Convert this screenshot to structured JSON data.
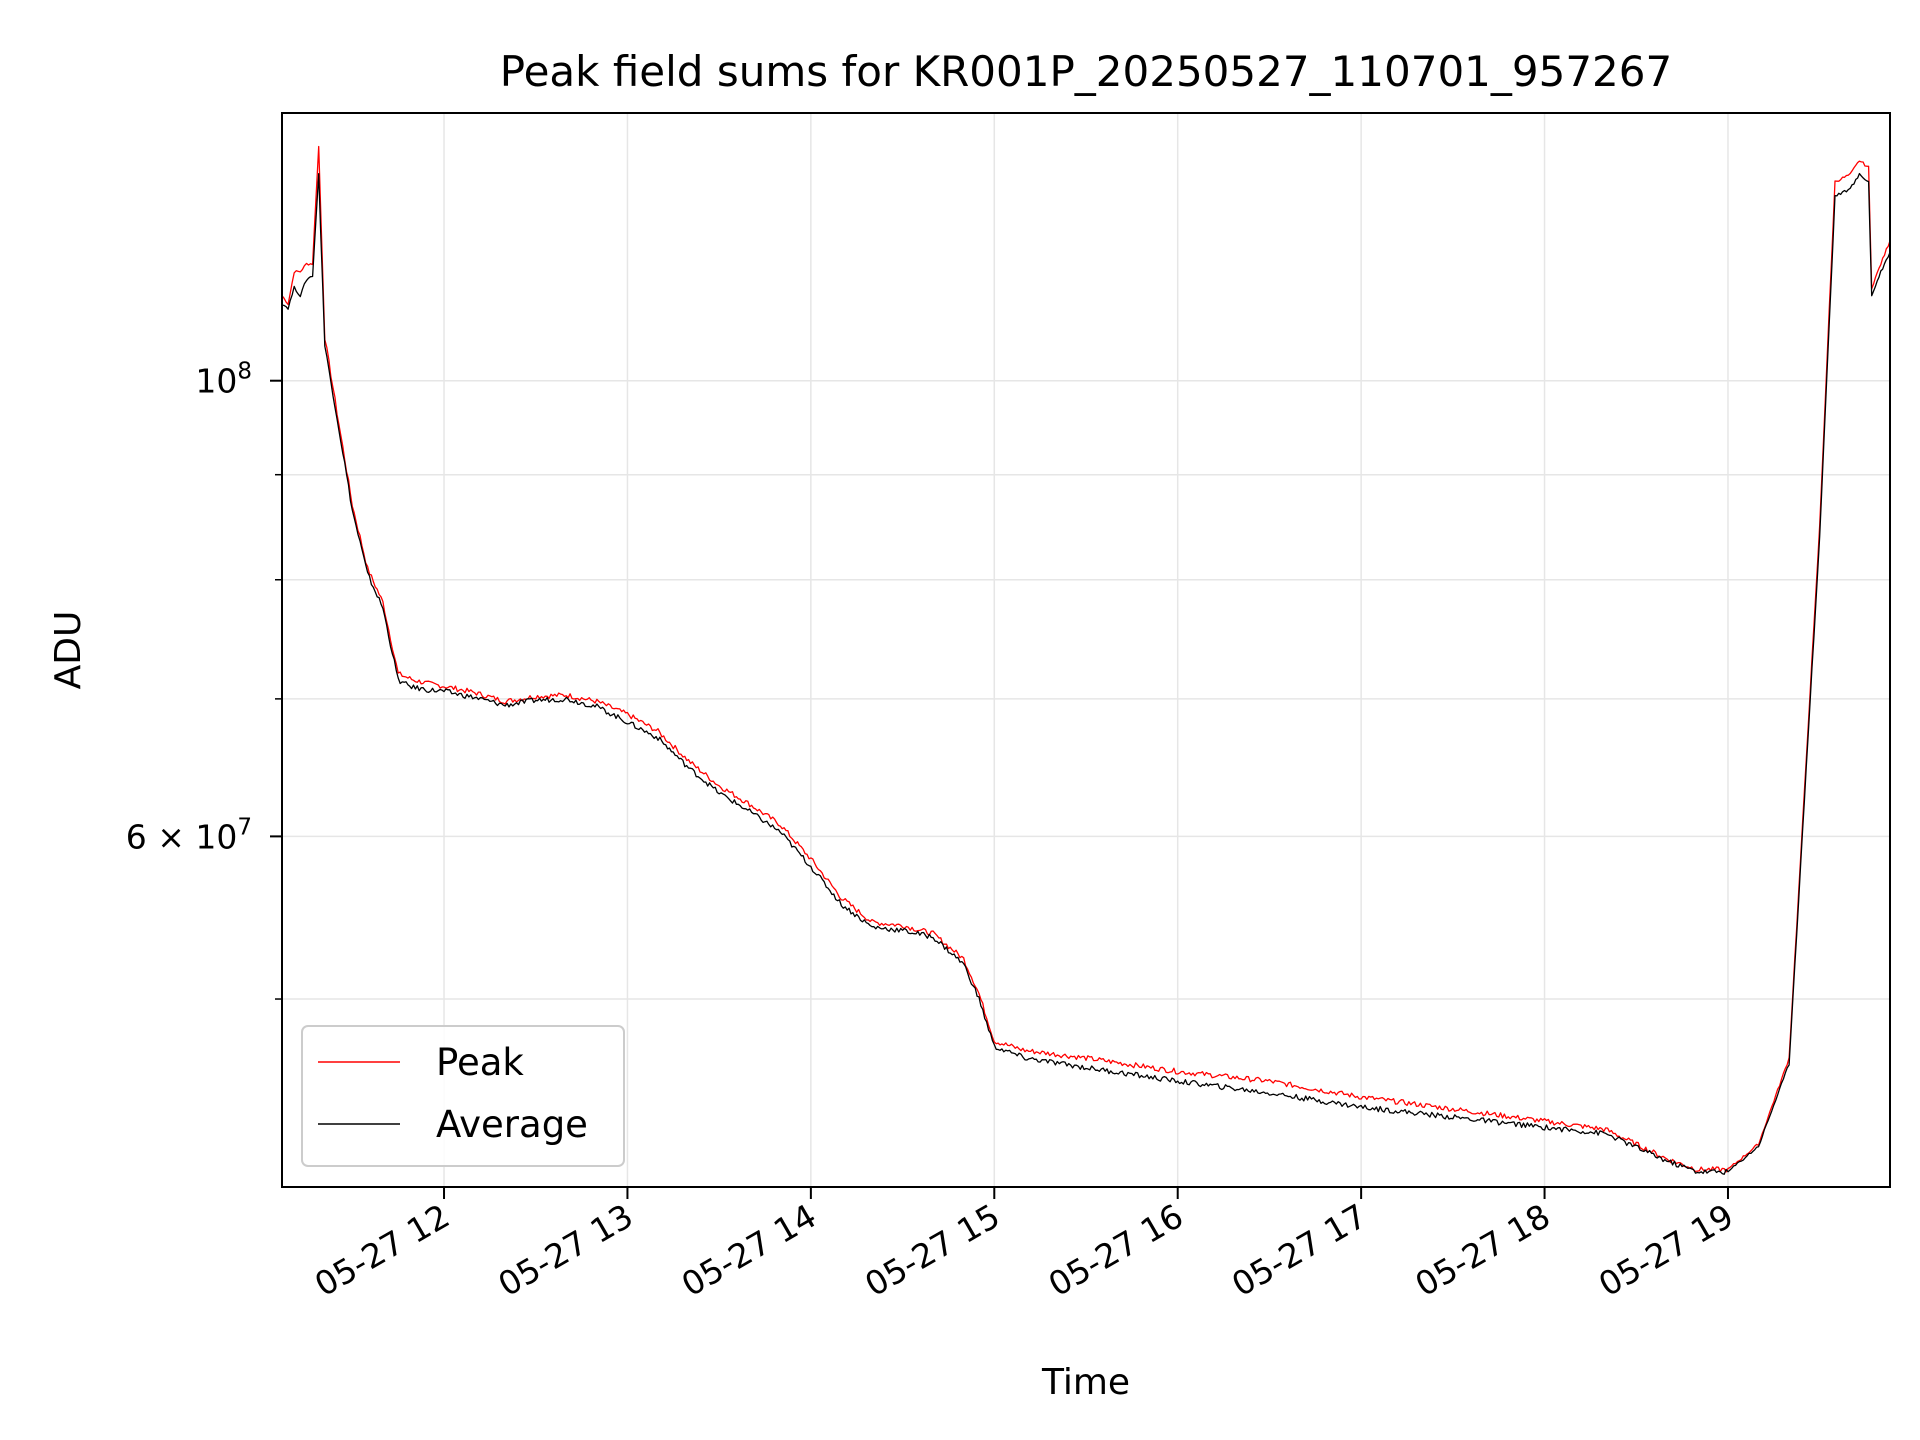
{
  "chart_data": {
    "type": "line",
    "title": "Peak field sums for KR001P_20250527_110701_957267",
    "xlabel": "Time",
    "ylabel": "ADU",
    "x_type": "time",
    "x_range": [
      "11:07",
      "19:53"
    ],
    "yscale": "log",
    "ylim": [
      40500000,
      135000000
    ],
    "grid": true,
    "legend_position": "lower-left",
    "x_ticks": [
      {
        "hour": 12,
        "label": "05-27 12"
      },
      {
        "hour": 13,
        "label": "05-27 13"
      },
      {
        "hour": 14,
        "label": "05-27 14"
      },
      {
        "hour": 15,
        "label": "05-27 15"
      },
      {
        "hour": 16,
        "label": "05-27 16"
      },
      {
        "hour": 17,
        "label": "05-27 17"
      },
      {
        "hour": 18,
        "label": "05-27 18"
      },
      {
        "hour": 19,
        "label": "05-27 19"
      }
    ],
    "y_ticks_major": [
      {
        "value": 100000000,
        "mantissa": "10",
        "exp": "8"
      },
      {
        "value": 60000000,
        "mantissa": "6 × 10",
        "exp": "7"
      }
    ],
    "y_ticks_minor": [
      50000000,
      70000000,
      80000000,
      90000000
    ],
    "series": [
      {
        "name": "Peak",
        "color": "#ff0000",
        "x": [
          "11:07",
          "11:09",
          "11:11",
          "11:13",
          "11:15",
          "11:17",
          "11:19",
          "11:21",
          "11:25",
          "11:30",
          "11:35",
          "11:40",
          "11:45",
          "11:47",
          "11:50",
          "11:55",
          "12:00",
          "12:10",
          "12:20",
          "12:30",
          "12:40",
          "12:50",
          "13:00",
          "13:10",
          "13:20",
          "13:30",
          "13:40",
          "13:50",
          "14:00",
          "14:10",
          "14:20",
          "14:30",
          "14:40",
          "14:50",
          "14:55",
          "15:00",
          "15:10",
          "15:30",
          "16:00",
          "16:30",
          "17:00",
          "17:30",
          "18:00",
          "18:20",
          "18:40",
          "18:50",
          "19:00",
          "19:10",
          "19:20",
          "19:30",
          "19:35",
          "19:40",
          "19:43",
          "19:46",
          "19:47",
          "19:50",
          "19:53"
        ],
        "y": [
          110000000,
          109000000,
          113000000,
          113000000,
          114000000,
          114000000,
          130000000,
          105000000,
          96500000,
          87000000,
          81000000,
          78000000,
          72000000,
          71800000,
          71500000,
          71200000,
          71000000,
          70500000,
          69800000,
          70200000,
          70300000,
          69800000,
          68800000,
          67500000,
          65300000,
          63500000,
          62200000,
          60800000,
          58500000,
          56000000,
          54500000,
          54300000,
          53800000,
          52300000,
          50300000,
          47700000,
          47200000,
          46800000,
          46100000,
          45600000,
          44800000,
          44200000,
          43600000,
          43200000,
          41800000,
          41300000,
          41300000,
          42500000,
          46800000,
          85000000,
          125000000,
          126000000,
          128000000,
          127000000,
          111000000,
          114000000,
          117000000
        ]
      },
      {
        "name": "Average",
        "color": "#000000",
        "x": [
          "11:07",
          "11:09",
          "11:11",
          "11:13",
          "11:15",
          "11:17",
          "11:19",
          "11:21",
          "11:25",
          "11:30",
          "11:35",
          "11:40",
          "11:45",
          "11:47",
          "11:50",
          "11:55",
          "12:00",
          "12:10",
          "12:20",
          "12:30",
          "12:40",
          "12:50",
          "13:00",
          "13:10",
          "13:20",
          "13:30",
          "13:40",
          "13:50",
          "14:00",
          "14:10",
          "14:20",
          "14:30",
          "14:40",
          "14:50",
          "14:55",
          "15:00",
          "15:10",
          "15:30",
          "16:00",
          "16:30",
          "17:00",
          "17:30",
          "18:00",
          "18:20",
          "18:40",
          "18:50",
          "19:00",
          "19:10",
          "19:20",
          "19:30",
          "19:35",
          "19:40",
          "19:43",
          "19:46",
          "19:47",
          "19:50",
          "19:53"
        ],
        "y": [
          109000000,
          108500000,
          111000000,
          110000000,
          112000000,
          112500000,
          126000000,
          104000000,
          96000000,
          86500000,
          80500000,
          77500000,
          71500000,
          71200000,
          70900000,
          70700000,
          70600000,
          70100000,
          69500000,
          69900000,
          70000000,
          69400000,
          68200000,
          67000000,
          64800000,
          63000000,
          61700000,
          60300000,
          58000000,
          55600000,
          54200000,
          54000000,
          53600000,
          52000000,
          50000000,
          47400000,
          46800000,
          46300000,
          45600000,
          45000000,
          44300000,
          43800000,
          43300000,
          43000000,
          41700000,
          41200000,
          41200000,
          42400000,
          46500000,
          84000000,
          123000000,
          124000000,
          126000000,
          125000000,
          110000000,
          113000000,
          115500000
        ]
      }
    ]
  }
}
